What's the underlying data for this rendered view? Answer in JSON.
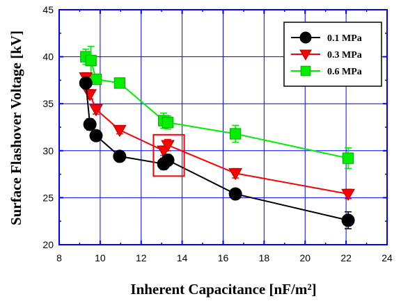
{
  "chart_data": {
    "type": "line",
    "xlabel": "Inherent Capacitance [nF/m²]",
    "ylabel": "Surface Flashover Voltage [kV]",
    "xlim": [
      8,
      24
    ],
    "ylim": [
      20,
      45
    ],
    "xticks": [
      8,
      10,
      12,
      14,
      16,
      18,
      20,
      22,
      24
    ],
    "yticks": [
      20,
      25,
      30,
      35,
      40,
      45
    ],
    "grid": true,
    "legend_position": "top-right",
    "series": [
      {
        "name": "0.1 MPa",
        "color": "#000000",
        "marker": "circle",
        "x": [
          9.3,
          9.5,
          9.8,
          10.95,
          13.1,
          13.3,
          16.6,
          22.1
        ],
        "y": [
          37.2,
          32.8,
          31.6,
          29.4,
          28.6,
          29.0,
          25.4,
          22.6
        ],
        "error": [
          0.6,
          0.6,
          0.5,
          0.4,
          0.6,
          0.6,
          0.4,
          0.9
        ]
      },
      {
        "name": "0.3 MPa",
        "color": "#ff0000",
        "marker": "triangle-down",
        "x": [
          9.3,
          9.5,
          9.8,
          10.95,
          13.1,
          13.3,
          16.6,
          22.1
        ],
        "y": [
          37.8,
          36.0,
          34.4,
          32.2,
          30.0,
          30.6,
          27.6,
          25.4
        ],
        "error": [
          0.5,
          0.5,
          0.5,
          0.4,
          0.5,
          0.6,
          0.5,
          0.5
        ]
      },
      {
        "name": "0.6 MPa",
        "color": "#00ee00",
        "marker": "square",
        "x": [
          9.3,
          9.55,
          9.8,
          10.95,
          13.1,
          13.3,
          16.6,
          22.1
        ],
        "y": [
          40.0,
          39.6,
          37.6,
          37.2,
          33.2,
          33.0,
          31.8,
          29.2
        ],
        "error": [
          0.8,
          1.5,
          0.5,
          0.4,
          0.8,
          0.7,
          0.9,
          1.1
        ]
      }
    ],
    "annotations": [
      {
        "type": "rectangle",
        "color": "#ff0000",
        "x_range": [
          12.6,
          14.1
        ],
        "y_range": [
          27.3,
          31.7
        ]
      }
    ]
  }
}
